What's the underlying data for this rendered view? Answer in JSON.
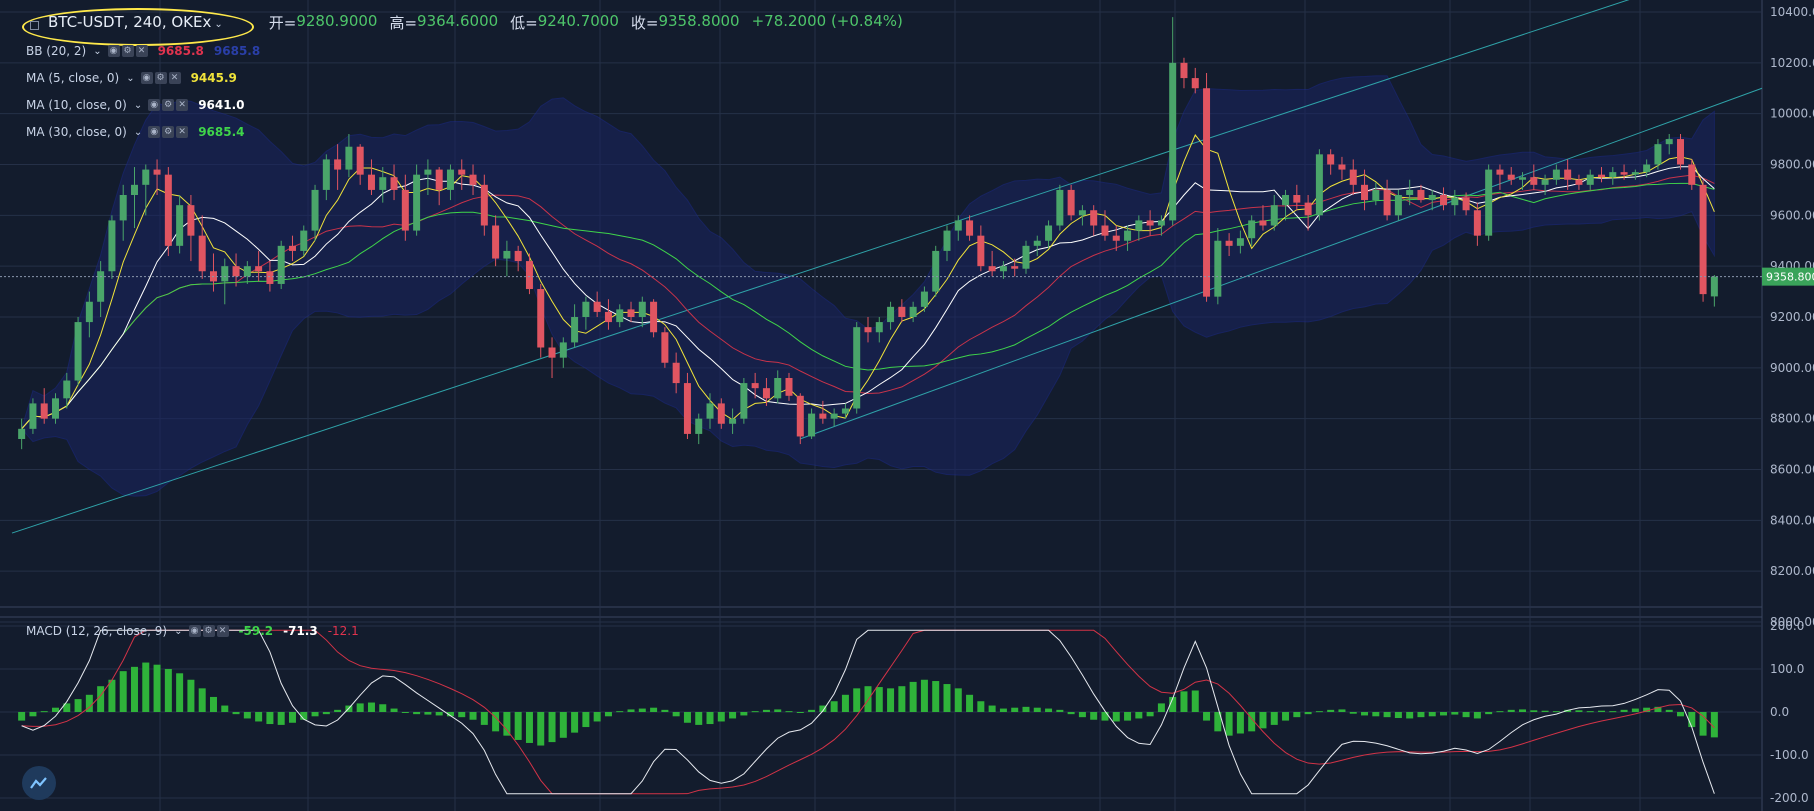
{
  "header": {
    "symbol": "BTC-USDT, 240, OKEx",
    "open_label": "开=",
    "open": "9280.9000",
    "high_label": "高=",
    "high": "9364.6000",
    "low_label": "低=",
    "low": "9240.7000",
    "close_label": "收=",
    "close": "9358.8000",
    "change": "+78.2000 (+0.84%)"
  },
  "indicators": [
    {
      "name": "BB (20, 2)",
      "value": "9685.8",
      "value2": "9685.8",
      "color": "#e0334e",
      "color2": "#2a3fa8"
    },
    {
      "name": "MA (5, close, 0)",
      "value": "9445.9",
      "color": "#f0e33a"
    },
    {
      "name": "MA (10, close, 0)",
      "value": "9641.0",
      "color": "#ffffff"
    },
    {
      "name": "MA (30, close, 0)",
      "value": "9685.4",
      "color": "#3fd44a"
    }
  ],
  "macd": {
    "name": "MACD (12, 26, close, 9)",
    "v1": "-59.2",
    "v2": "-71.3",
    "v3": "-12.1"
  },
  "price_axis": [
    "10400.00",
    "10200.00",
    "10000.00",
    "9800.00",
    "9600.00",
    "9400.00",
    "9200.00",
    "9000.00",
    "8800.00",
    "8600.00",
    "8400.00",
    "8200.00",
    "8000.00"
  ],
  "macd_axis": [
    "200.0",
    "100.0",
    "0.0",
    "-100.0",
    "-200.0"
  ],
  "last_price": "9358.800",
  "colors": {
    "bg": "#131c2d",
    "up": "#4aa56a",
    "down": "#e05561",
    "grid": "#253047",
    "bb": "#1a2461",
    "trend": "#2fa2a8"
  },
  "chart_data": {
    "type": "candlestick",
    "ylim": [
      8000,
      10400
    ],
    "macd_ylim": [
      -200,
      200
    ],
    "series": [
      {
        "name": "candles",
        "values": [
          [
            8720,
            8800,
            8680,
            8760
          ],
          [
            8760,
            8880,
            8740,
            8860
          ],
          [
            8860,
            8920,
            8780,
            8800
          ],
          [
            8800,
            8900,
            8780,
            8880
          ],
          [
            8880,
            8980,
            8840,
            8950
          ],
          [
            8950,
            9200,
            8930,
            9180
          ],
          [
            9180,
            9300,
            9120,
            9260
          ],
          [
            9260,
            9420,
            9200,
            9380
          ],
          [
            9380,
            9600,
            9350,
            9580
          ],
          [
            9580,
            9720,
            9500,
            9680
          ],
          [
            9680,
            9790,
            9550,
            9720
          ],
          [
            9720,
            9800,
            9600,
            9780
          ],
          [
            9780,
            9820,
            9680,
            9760
          ],
          [
            9760,
            9790,
            9440,
            9480
          ],
          [
            9480,
            9680,
            9450,
            9640
          ],
          [
            9640,
            9680,
            9420,
            9520
          ],
          [
            9520,
            9600,
            9350,
            9380
          ],
          [
            9380,
            9450,
            9300,
            9340
          ],
          [
            9340,
            9430,
            9250,
            9400
          ],
          [
            9400,
            9450,
            9320,
            9360
          ],
          [
            9360,
            9420,
            9330,
            9400
          ],
          [
            9400,
            9460,
            9340,
            9380
          ],
          [
            9380,
            9420,
            9300,
            9330
          ],
          [
            9330,
            9500,
            9310,
            9480
          ],
          [
            9480,
            9520,
            9420,
            9460
          ],
          [
            9460,
            9560,
            9440,
            9540
          ],
          [
            9540,
            9720,
            9500,
            9700
          ],
          [
            9700,
            9840,
            9660,
            9820
          ],
          [
            9820,
            9880,
            9700,
            9780
          ],
          [
            9780,
            9920,
            9750,
            9870
          ],
          [
            9870,
            9880,
            9720,
            9760
          ],
          [
            9760,
            9820,
            9680,
            9700
          ],
          [
            9700,
            9790,
            9650,
            9750
          ],
          [
            9750,
            9800,
            9660,
            9700
          ],
          [
            9700,
            9760,
            9500,
            9540
          ],
          [
            9540,
            9800,
            9520,
            9760
          ],
          [
            9760,
            9820,
            9680,
            9780
          ],
          [
            9780,
            9790,
            9640,
            9700
          ],
          [
            9700,
            9800,
            9660,
            9780
          ],
          [
            9780,
            9820,
            9700,
            9760
          ],
          [
            9760,
            9800,
            9680,
            9720
          ],
          [
            9720,
            9760,
            9520,
            9560
          ],
          [
            9560,
            9600,
            9400,
            9430
          ],
          [
            9430,
            9500,
            9360,
            9460
          ],
          [
            9460,
            9480,
            9380,
            9420
          ],
          [
            9420,
            9450,
            9290,
            9310
          ],
          [
            9310,
            9330,
            9040,
            9080
          ],
          [
            9080,
            9120,
            8960,
            9040
          ],
          [
            9040,
            9120,
            9000,
            9100
          ],
          [
            9100,
            9250,
            9080,
            9200
          ],
          [
            9200,
            9280,
            9150,
            9260
          ],
          [
            9260,
            9300,
            9200,
            9220
          ],
          [
            9220,
            9270,
            9150,
            9180
          ],
          [
            9180,
            9250,
            9160,
            9230
          ],
          [
            9230,
            9260,
            9180,
            9200
          ],
          [
            9200,
            9280,
            9160,
            9260
          ],
          [
            9260,
            9270,
            9120,
            9140
          ],
          [
            9140,
            9160,
            9000,
            9020
          ],
          [
            9020,
            9060,
            8900,
            8940
          ],
          [
            8940,
            8980,
            8720,
            8740
          ],
          [
            8740,
            8820,
            8700,
            8800
          ],
          [
            8800,
            8900,
            8760,
            8860
          ],
          [
            8860,
            8880,
            8760,
            8780
          ],
          [
            8780,
            8840,
            8740,
            8800
          ],
          [
            8800,
            8960,
            8780,
            8940
          ],
          [
            8940,
            8980,
            8880,
            8920
          ],
          [
            8920,
            8960,
            8850,
            8880
          ],
          [
            8880,
            8990,
            8860,
            8960
          ],
          [
            8960,
            8980,
            8870,
            8890
          ],
          [
            8890,
            8900,
            8700,
            8730
          ],
          [
            8730,
            8840,
            8720,
            8820
          ],
          [
            8820,
            8870,
            8780,
            8800
          ],
          [
            8800,
            8840,
            8770,
            8820
          ],
          [
            8820,
            8860,
            8800,
            8840
          ],
          [
            8840,
            9180,
            8820,
            9160
          ],
          [
            9160,
            9200,
            9100,
            9140
          ],
          [
            9140,
            9200,
            9100,
            9180
          ],
          [
            9180,
            9260,
            9150,
            9240
          ],
          [
            9240,
            9270,
            9180,
            9200
          ],
          [
            9200,
            9260,
            9180,
            9240
          ],
          [
            9240,
            9320,
            9220,
            9300
          ],
          [
            9300,
            9480,
            9280,
            9460
          ],
          [
            9460,
            9560,
            9420,
            9540
          ],
          [
            9540,
            9600,
            9500,
            9580
          ],
          [
            9580,
            9600,
            9500,
            9520
          ],
          [
            9520,
            9560,
            9380,
            9400
          ],
          [
            9400,
            9460,
            9360,
            9380
          ],
          [
            9380,
            9420,
            9350,
            9400
          ],
          [
            9400,
            9430,
            9360,
            9390
          ],
          [
            9390,
            9500,
            9370,
            9480
          ],
          [
            9480,
            9520,
            9440,
            9500
          ],
          [
            9500,
            9580,
            9470,
            9560
          ],
          [
            9560,
            9720,
            9540,
            9700
          ],
          [
            9700,
            9720,
            9580,
            9600
          ],
          [
            9600,
            9640,
            9560,
            9620
          ],
          [
            9620,
            9640,
            9520,
            9560
          ],
          [
            9560,
            9620,
            9500,
            9520
          ],
          [
            9520,
            9560,
            9460,
            9500
          ],
          [
            9500,
            9560,
            9460,
            9540
          ],
          [
            9540,
            9600,
            9500,
            9580
          ],
          [
            9580,
            9620,
            9520,
            9560
          ],
          [
            9560,
            9600,
            9520,
            9580
          ],
          [
            9580,
            10380,
            9560,
            10200
          ],
          [
            10200,
            10220,
            10100,
            10140
          ],
          [
            10140,
            10180,
            10080,
            10100
          ],
          [
            10100,
            10160,
            9260,
            9280
          ],
          [
            9280,
            9550,
            9250,
            9500
          ],
          [
            9500,
            9530,
            9440,
            9480
          ],
          [
            9480,
            9540,
            9450,
            9510
          ],
          [
            9510,
            9600,
            9480,
            9580
          ],
          [
            9580,
            9640,
            9540,
            9560
          ],
          [
            9560,
            9680,
            9540,
            9640
          ],
          [
            9640,
            9700,
            9580,
            9680
          ],
          [
            9680,
            9720,
            9620,
            9650
          ],
          [
            9650,
            9680,
            9540,
            9600
          ],
          [
            9600,
            9860,
            9580,
            9840
          ],
          [
            9840,
            9860,
            9760,
            9800
          ],
          [
            9800,
            9830,
            9740,
            9780
          ],
          [
            9780,
            9820,
            9680,
            9720
          ],
          [
            9720,
            9780,
            9620,
            9660
          ],
          [
            9660,
            9730,
            9640,
            9700
          ],
          [
            9700,
            9740,
            9580,
            9600
          ],
          [
            9600,
            9700,
            9580,
            9680
          ],
          [
            9680,
            9740,
            9640,
            9700
          ],
          [
            9700,
            9720,
            9650,
            9660
          ],
          [
            9660,
            9700,
            9620,
            9680
          ],
          [
            9680,
            9710,
            9620,
            9640
          ],
          [
            9640,
            9700,
            9600,
            9670
          ],
          [
            9670,
            9690,
            9600,
            9620
          ],
          [
            9620,
            9650,
            9480,
            9520
          ],
          [
            9520,
            9800,
            9500,
            9780
          ],
          [
            9780,
            9800,
            9700,
            9760
          ],
          [
            9760,
            9790,
            9720,
            9740
          ],
          [
            9740,
            9770,
            9700,
            9750
          ],
          [
            9750,
            9800,
            9700,
            9720
          ],
          [
            9720,
            9760,
            9680,
            9740
          ],
          [
            9740,
            9800,
            9720,
            9780
          ],
          [
            9780,
            9820,
            9700,
            9740
          ],
          [
            9740,
            9760,
            9700,
            9720
          ],
          [
            9720,
            9780,
            9700,
            9760
          ],
          [
            9760,
            9790,
            9730,
            9750
          ],
          [
            9750,
            9790,
            9720,
            9770
          ],
          [
            9770,
            9800,
            9740,
            9760
          ],
          [
            9760,
            9780,
            9740,
            9770
          ],
          [
            9770,
            9820,
            9750,
            9800
          ],
          [
            9800,
            9900,
            9780,
            9880
          ],
          [
            9880,
            9920,
            9840,
            9900
          ],
          [
            9900,
            9920,
            9780,
            9800
          ],
          [
            9800,
            9820,
            9700,
            9720
          ],
          [
            9720,
            9740,
            9260,
            9290
          ],
          [
            9281,
            9365,
            9241,
            9359
          ]
        ]
      },
      {
        "name": "macd_hist",
        "values": [
          -20,
          -10,
          2,
          10,
          20,
          30,
          40,
          60,
          75,
          95,
          105,
          115,
          110,
          100,
          90,
          75,
          55,
          35,
          15,
          -5,
          -15,
          -22,
          -28,
          -30,
          -25,
          -18,
          -10,
          -5,
          5,
          15,
          20,
          22,
          18,
          8,
          -2,
          -5,
          -6,
          -8,
          -10,
          -12,
          -18,
          -30,
          -45,
          -55,
          -65,
          -72,
          -78,
          -70,
          -60,
          -48,
          -35,
          -22,
          -10,
          2,
          6,
          8,
          10,
          5,
          -10,
          -25,
          -30,
          -28,
          -22,
          -15,
          -8,
          2,
          5,
          6,
          2,
          -2,
          5,
          15,
          25,
          40,
          55,
          60,
          58,
          55,
          60,
          70,
          75,
          72,
          65,
          55,
          40,
          25,
          15,
          8,
          10,
          12,
          10,
          8,
          5,
          -5,
          -12,
          -18,
          -20,
          -22,
          -20,
          -15,
          -10,
          20,
          35,
          48,
          50,
          -20,
          -45,
          -55,
          -50,
          -45,
          -38,
          -30,
          -20,
          -12,
          -5,
          2,
          5,
          6,
          -4,
          -8,
          -10,
          -12,
          -14,
          -15,
          -12,
          -10,
          -8,
          -6,
          -12,
          -15,
          -5,
          2,
          5,
          6,
          4,
          3,
          2,
          5,
          4,
          2,
          3,
          2,
          5,
          8,
          10,
          12,
          5,
          -10,
          -35,
          -55,
          -59
        ]
      }
    ]
  }
}
